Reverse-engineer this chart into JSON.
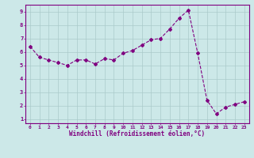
{
  "x": [
    0,
    1,
    2,
    3,
    4,
    5,
    6,
    7,
    8,
    9,
    10,
    11,
    12,
    13,
    14,
    15,
    16,
    17,
    18,
    19,
    20,
    21,
    22,
    23
  ],
  "y": [
    6.4,
    5.6,
    5.4,
    5.2,
    5.0,
    5.4,
    5.4,
    5.1,
    5.5,
    5.4,
    5.9,
    6.1,
    6.5,
    6.9,
    7.0,
    7.7,
    8.5,
    9.1,
    5.9,
    2.4,
    1.4,
    1.9,
    2.1,
    2.3
  ],
  "line_color": "#800080",
  "marker": "D",
  "markersize": 2.0,
  "linewidth": 0.8,
  "xlabel": "Windchill (Refroidissement éolien,°C)",
  "xlim": [
    -0.5,
    23.5
  ],
  "ylim": [
    0.7,
    9.5
  ],
  "yticks": [
    1,
    2,
    3,
    4,
    5,
    6,
    7,
    8,
    9
  ],
  "xticks": [
    0,
    1,
    2,
    3,
    4,
    5,
    6,
    7,
    8,
    9,
    10,
    11,
    12,
    13,
    14,
    15,
    16,
    17,
    18,
    19,
    20,
    21,
    22,
    23
  ],
  "bg_color": "#cce8e8",
  "grid_color": "#aacaca",
  "label_color": "#800080",
  "axis_color": "#800080",
  "tick_fontsize": 4.5,
  "xlabel_fontsize": 5.5
}
